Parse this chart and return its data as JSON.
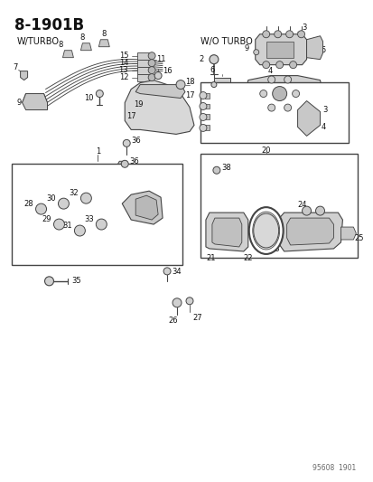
{
  "title": "8-1901B",
  "bg_color": "#ffffff",
  "line_color": "#444444",
  "text_color": "#111111",
  "w_turbo_label": "W/TURBO",
  "wo_turbo_label": "W/O TURBO",
  "footer": "95608  1901",
  "label_fontsize": 6.0,
  "title_fontsize": 12,
  "section_fontsize": 7.0
}
